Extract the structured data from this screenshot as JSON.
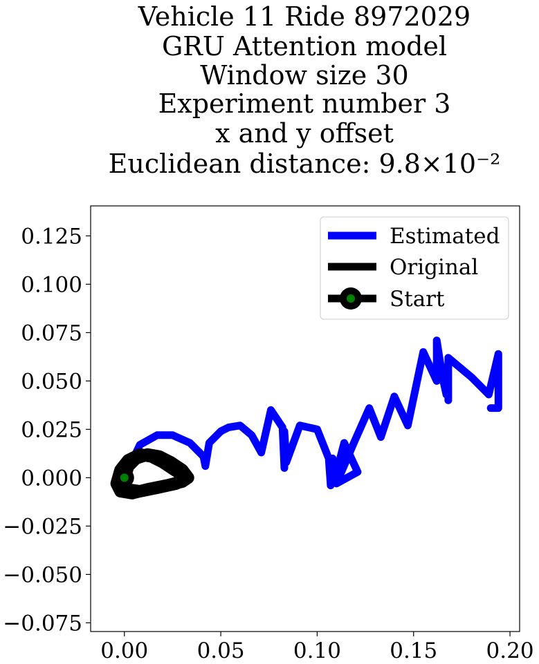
{
  "chart_data": {
    "type": "line",
    "title_lines": [
      "Vehicle 11 Ride 8972029",
      "GRU Attention model",
      "Window size 30",
      "Experiment number 3",
      "x and y offset",
      "Euclidean distance: 9.8×10⁻²"
    ],
    "xlabel": "",
    "ylabel": "",
    "xlim": [
      -0.0175,
      0.205
    ],
    "ylim": [
      -0.0795,
      0.1405
    ],
    "x_ticks": [
      0.0,
      0.05,
      0.1,
      0.15,
      0.2
    ],
    "x_tick_labels": [
      "0.00",
      "0.05",
      "0.10",
      "0.15",
      "0.20"
    ],
    "y_ticks": [
      0.125,
      0.1,
      0.075,
      0.05,
      0.025,
      0.0,
      -0.025,
      -0.05,
      -0.075
    ],
    "y_tick_labels": [
      "0.125",
      "0.100",
      "0.075",
      "0.050",
      "0.025",
      "0.000",
      "−0.025",
      "−0.050",
      "−0.075"
    ],
    "grid": false,
    "legend_position": "top-right",
    "legend": [
      "Estimated",
      "Original",
      "Start"
    ],
    "colors": {
      "estimated": "#0000ff",
      "original": "#000000",
      "start_fill": "#008000",
      "start_ring": "#000000"
    },
    "series": [
      {
        "name": "Estimated",
        "points": [
          [
            0.0,
            0.0
          ],
          [
            0.008,
            0.017
          ],
          [
            0.017,
            0.022
          ],
          [
            0.025,
            0.022
          ],
          [
            0.034,
            0.018
          ],
          [
            0.041,
            0.011
          ],
          [
            0.042,
            0.006
          ],
          [
            0.044,
            0.018
          ],
          [
            0.05,
            0.024
          ],
          [
            0.054,
            0.026
          ],
          [
            0.06,
            0.027
          ],
          [
            0.066,
            0.022
          ],
          [
            0.071,
            0.013
          ],
          [
            0.076,
            0.035
          ],
          [
            0.082,
            0.026
          ],
          [
            0.083,
            0.005
          ],
          [
            0.083,
            0.024
          ],
          [
            0.084,
            0.008
          ],
          [
            0.091,
            0.027
          ],
          [
            0.1,
            0.025
          ],
          [
            0.106,
            0.01
          ],
          [
            0.107,
            -0.004
          ],
          [
            0.108,
            0.01
          ],
          [
            0.109,
            -0.001
          ],
          [
            0.114,
            0.018
          ],
          [
            0.121,
            0.003
          ],
          [
            0.11,
            -0.003
          ],
          [
            0.119,
            0.018
          ],
          [
            0.127,
            0.036
          ],
          [
            0.133,
            0.021
          ],
          [
            0.14,
            0.042
          ],
          [
            0.147,
            0.027
          ],
          [
            0.155,
            0.065
          ],
          [
            0.162,
            0.05
          ],
          [
            0.162,
            0.071
          ],
          [
            0.165,
            0.052
          ],
          [
            0.167,
            0.043
          ],
          [
            0.168,
            0.06
          ],
          [
            0.168,
            0.04
          ],
          [
            0.168,
            0.062
          ],
          [
            0.18,
            0.052
          ],
          [
            0.189,
            0.043
          ],
          [
            0.194,
            0.064
          ],
          [
            0.194,
            0.036
          ],
          [
            0.19,
            0.036
          ]
        ]
      },
      {
        "name": "Original",
        "points": [
          [
            0.0,
            0.0
          ],
          [
            0.002,
            0.006
          ],
          [
            0.006,
            0.01
          ],
          [
            0.012,
            0.012
          ],
          [
            0.018,
            0.011
          ],
          [
            0.024,
            0.008
          ],
          [
            0.03,
            0.004
          ],
          [
            0.033,
            0.0
          ],
          [
            0.03,
            -0.002
          ],
          [
            0.022,
            -0.004
          ],
          [
            0.012,
            -0.006
          ],
          [
            0.004,
            -0.008
          ],
          [
            -0.002,
            -0.007
          ],
          [
            -0.004,
            -0.003
          ],
          [
            -0.002,
            0.004
          ],
          [
            0.002,
            0.009
          ],
          [
            0.008,
            0.012
          ],
          [
            0.014,
            0.011
          ],
          [
            0.02,
            0.008
          ],
          [
            0.026,
            0.004
          ],
          [
            0.031,
            0.001
          ],
          [
            0.027,
            -0.003
          ],
          [
            0.018,
            -0.005
          ],
          [
            0.008,
            -0.007
          ],
          [
            0.001,
            -0.006
          ],
          [
            -0.001,
            -0.003
          ]
        ]
      }
    ],
    "start_point": [
      0.0,
      0.0
    ]
  }
}
